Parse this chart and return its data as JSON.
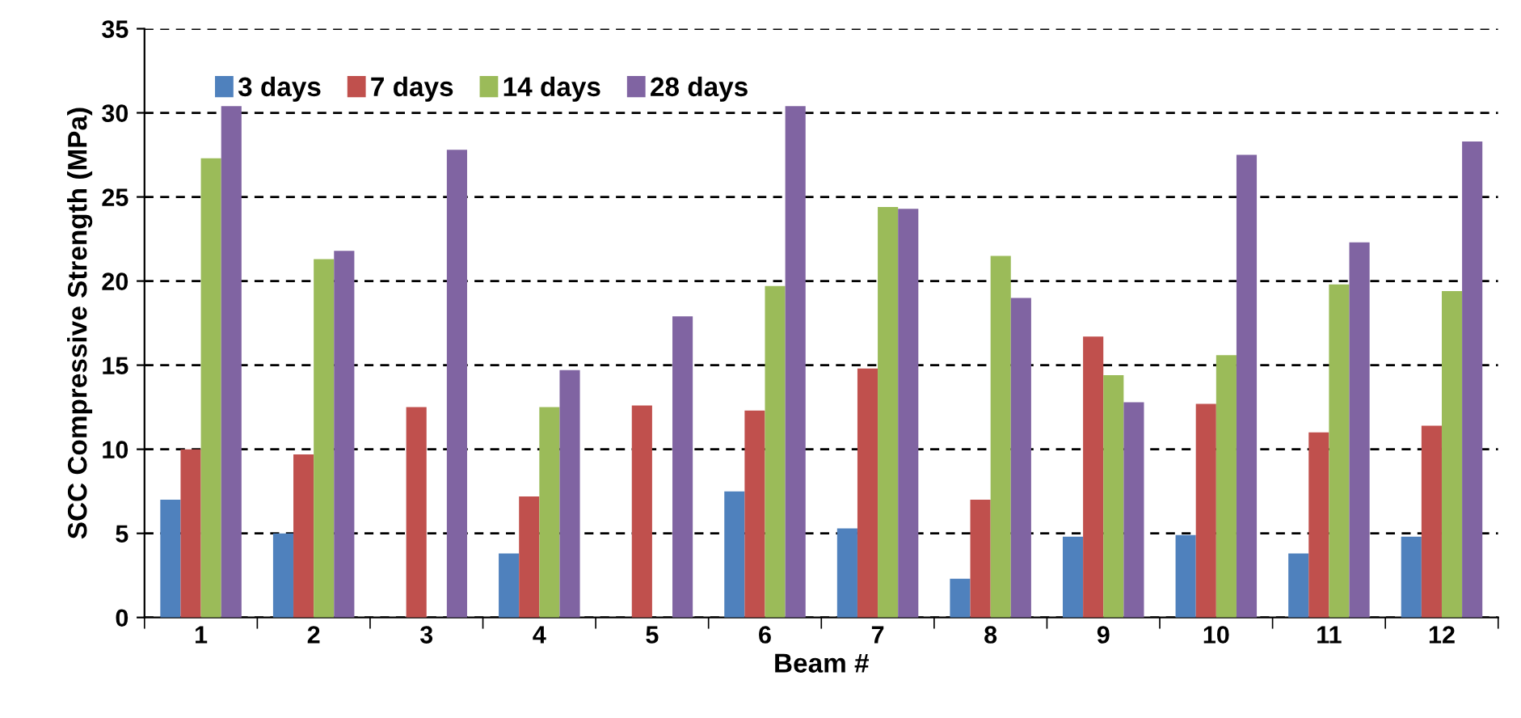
{
  "chart_data": {
    "type": "bar",
    "xlabel": "Beam #",
    "ylabel": "SCC Compressive Strength (MPa)",
    "categories": [
      "1",
      "2",
      "3",
      "4",
      "5",
      "6",
      "7",
      "8",
      "9",
      "10",
      "11",
      "12"
    ],
    "series": [
      {
        "name": "3 days",
        "color": "#4f81bd",
        "values": [
          7.0,
          5.0,
          null,
          3.8,
          null,
          7.5,
          5.3,
          2.3,
          4.8,
          4.9,
          3.8,
          4.8
        ]
      },
      {
        "name": "7 days",
        "color": "#c0504d",
        "values": [
          10.0,
          9.7,
          12.5,
          7.2,
          12.6,
          12.3,
          14.8,
          7.0,
          16.7,
          12.7,
          11.0,
          11.4
        ]
      },
      {
        "name": "14 days",
        "color": "#9bbb59",
        "values": [
          27.3,
          21.3,
          null,
          12.5,
          null,
          19.7,
          24.4,
          21.5,
          14.4,
          15.6,
          19.8,
          19.4
        ]
      },
      {
        "name": "28 days",
        "color": "#8064a2",
        "values": [
          30.4,
          21.8,
          27.8,
          14.7,
          17.9,
          30.4,
          24.3,
          19.0,
          12.8,
          27.5,
          22.3,
          28.3
        ]
      }
    ],
    "ylim": [
      0,
      35
    ],
    "yticks": [
      0,
      5,
      10,
      15,
      20,
      25,
      30,
      35
    ],
    "grid": "y",
    "legend": "top left"
  }
}
